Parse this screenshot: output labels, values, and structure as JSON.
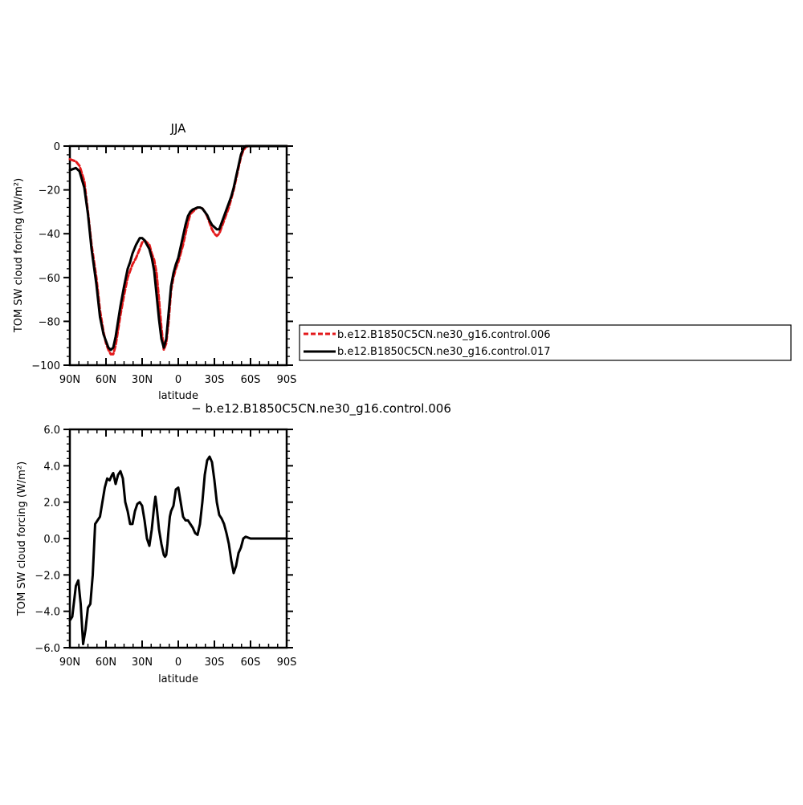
{
  "chart_data": [
    {
      "type": "line",
      "title": "JJA",
      "xlabel": "latitude",
      "ylabel": "TOM SW cloud forcing (W/m²)",
      "xlim": [
        90,
        -90
      ],
      "ylim": [
        -100,
        0
      ],
      "xticks": [
        90,
        60,
        30,
        0,
        -30,
        -60,
        -90
      ],
      "xtick_labels": [
        "90N",
        "60N",
        "30N",
        "0",
        "30S",
        "60S",
        "90S"
      ],
      "yticks": [
        0,
        -20,
        -40,
        -60,
        -80,
        -100
      ],
      "ytick_labels": [
        "0",
        "−20",
        "−40",
        "−60",
        "−80",
        "−100"
      ],
      "legend": {
        "placement": "right",
        "entries": [
          "b.e12.B1850C5CN.ne30_g16.control.006",
          "b.e12.B1850C5CN.ne30_g16.control.017"
        ]
      },
      "series": [
        {
          "name": "b.e12.B1850C5CN.ne30_g16.control.006",
          "color": "#e31a1c",
          "dash": "dashed",
          "x": [
            90,
            85,
            82,
            78,
            75,
            72,
            68,
            65,
            62,
            60,
            58,
            56,
            54,
            52,
            50,
            48,
            45,
            42,
            40,
            38,
            35,
            32,
            30,
            28,
            26,
            24,
            22,
            20,
            18,
            16,
            14,
            12,
            10,
            8,
            6,
            4,
            2,
            0,
            -2,
            -4,
            -6,
            -8,
            -10,
            -12,
            -14,
            -16,
            -18,
            -20,
            -22,
            -24,
            -26,
            -28,
            -30,
            -32,
            -34,
            -36,
            -38,
            -40,
            -42,
            -44,
            -46,
            -48,
            -50,
            -52,
            -54,
            -56,
            -58,
            -60,
            -62,
            -64,
            -66,
            -68,
            -70,
            -75,
            -80,
            -85,
            -90
          ],
          "y": [
            -6,
            -7,
            -9,
            -16,
            -30,
            -45,
            -60,
            -75,
            -85,
            -90,
            -93,
            -95,
            -95,
            -91,
            -84,
            -77,
            -68,
            -60,
            -57,
            -54,
            -51,
            -47,
            -44,
            -43,
            -44,
            -45,
            -49,
            -52,
            -58,
            -70,
            -83,
            -93,
            -90,
            -80,
            -66,
            -60,
            -56,
            -53,
            -49,
            -45,
            -40,
            -35,
            -31,
            -30,
            -29,
            -28,
            -28,
            -28.5,
            -30,
            -32,
            -35,
            -38,
            -40,
            -41,
            -40,
            -37,
            -34,
            -31,
            -28,
            -24,
            -20,
            -15,
            -10,
            -5,
            -2,
            -0.5,
            0,
            0,
            0,
            0,
            0,
            0,
            0,
            0,
            0,
            0,
            0
          ]
        },
        {
          "name": "b.e12.B1850C5CN.ne30_g16.control.017",
          "color": "#000000",
          "dash": "solid",
          "x": [
            90,
            85,
            82,
            78,
            75,
            72,
            68,
            65,
            62,
            60,
            58,
            56,
            54,
            52,
            50,
            48,
            45,
            42,
            40,
            38,
            35,
            32,
            30,
            28,
            26,
            24,
            22,
            20,
            18,
            16,
            14,
            12,
            10,
            8,
            6,
            4,
            2,
            0,
            -2,
            -4,
            -6,
            -8,
            -10,
            -12,
            -14,
            -16,
            -18,
            -20,
            -22,
            -24,
            -26,
            -28,
            -30,
            -32,
            -34,
            -36,
            -38,
            -40,
            -42,
            -44,
            -46,
            -48,
            -50,
            -52,
            -54,
            -56,
            -58,
            -60,
            -62,
            -64,
            -66,
            -68,
            -70,
            -75,
            -80,
            -85,
            -90
          ],
          "y": [
            -11,
            -10,
            -11.5,
            -19,
            -31,
            -47,
            -63,
            -78,
            -86,
            -89,
            -92,
            -93,
            -92,
            -87,
            -80,
            -73,
            -64,
            -56,
            -53,
            -49,
            -45,
            -42,
            -42,
            -43,
            -45,
            -47,
            -51,
            -57,
            -68,
            -79,
            -88,
            -92,
            -88,
            -76,
            -64,
            -58,
            -54,
            -51,
            -46,
            -41,
            -36,
            -32,
            -30,
            -29,
            -28.5,
            -28,
            -28,
            -28.5,
            -30,
            -31.5,
            -34,
            -36,
            -37,
            -38,
            -38,
            -35,
            -32,
            -29,
            -26,
            -23,
            -19,
            -14,
            -9,
            -4,
            -1,
            0,
            0,
            0,
            0,
            0,
            0,
            0,
            0,
            0,
            0,
            0,
            0
          ]
        }
      ]
    },
    {
      "type": "line",
      "title": "− b.e12.B1850C5CN.ne30_g16.control.006",
      "xlabel": "latitude",
      "ylabel": "TOM SW cloud forcing (W/m²)",
      "xlim": [
        90,
        -90
      ],
      "ylim": [
        -6,
        6
      ],
      "xticks": [
        90,
        60,
        30,
        0,
        -30,
        -60,
        -90
      ],
      "xtick_labels": [
        "90N",
        "60N",
        "30N",
        "0",
        "30S",
        "60S",
        "90S"
      ],
      "yticks": [
        6,
        4,
        2,
        0,
        -2,
        -4,
        -6
      ],
      "ytick_labels": [
        "6.0",
        "4.0",
        "2.0",
        "0.0",
        "−2.0",
        "−4.0",
        "−6.0"
      ],
      "series": [
        {
          "color": "#000000",
          "dash": "solid",
          "x": [
            90,
            88,
            85,
            83,
            81,
            79,
            77,
            75,
            73,
            71,
            69,
            67,
            65,
            63,
            61,
            59,
            57,
            55,
            54,
            52,
            50,
            48,
            46,
            44,
            42,
            40,
            38,
            36,
            34,
            32,
            30,
            28,
            26,
            24,
            22,
            20,
            19,
            18,
            16,
            14,
            12,
            11,
            10,
            9,
            8,
            7,
            6,
            4,
            2,
            0,
            -2,
            -4,
            -6,
            -8,
            -10,
            -12,
            -14,
            -16,
            -18,
            -20,
            -22,
            -24,
            -26,
            -28,
            -30,
            -32,
            -34,
            -36,
            -38,
            -40,
            -42,
            -44,
            -46,
            -48,
            -50,
            -52,
            -54,
            -56,
            -58,
            -60,
            -62,
            -64,
            -66,
            -68,
            -70,
            -75,
            -80,
            -85,
            -90
          ],
          "y": [
            -4.5,
            -4.3,
            -2.6,
            -2.3,
            -3.6,
            -5.8,
            -5.0,
            -3.8,
            -3.6,
            -2.0,
            0.8,
            1.0,
            1.2,
            2.0,
            2.8,
            3.3,
            3.2,
            3.5,
            3.6,
            3.0,
            3.5,
            3.7,
            3.3,
            2.0,
            1.5,
            0.8,
            0.8,
            1.5,
            1.9,
            2.0,
            1.8,
            1.0,
            0.0,
            -0.4,
            0.5,
            1.8,
            2.3,
            1.8,
            0.5,
            -0.3,
            -0.9,
            -1.0,
            -0.9,
            -0.3,
            0.5,
            1.2,
            1.5,
            1.8,
            2.7,
            2.8,
            2.0,
            1.2,
            1.0,
            1.0,
            0.8,
            0.6,
            0.3,
            0.2,
            0.8,
            2.0,
            3.5,
            4.3,
            4.5,
            4.2,
            3.2,
            2.0,
            1.3,
            1.1,
            0.8,
            0.3,
            -0.3,
            -1.2,
            -1.9,
            -1.5,
            -0.8,
            -0.5,
            0.0,
            0.1,
            0.05,
            0,
            0,
            0,
            0,
            0,
            0,
            0,
            0,
            0,
            0
          ]
        }
      ]
    }
  ]
}
